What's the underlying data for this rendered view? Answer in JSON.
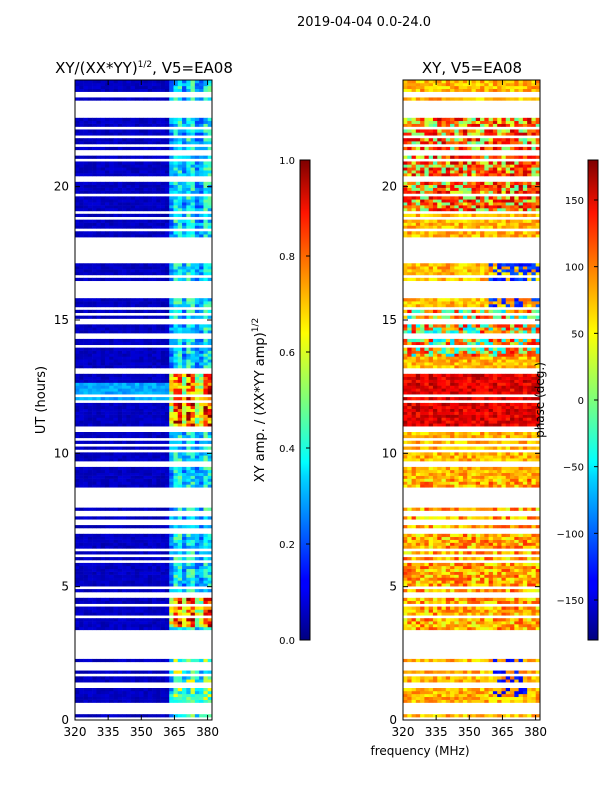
{
  "suptitle": "2019-04-04 0.0-24.0",
  "chart_data": [
    {
      "type": "heatmap",
      "title_prefix": "XY/(XX*YY)",
      "title_sup": "1/2",
      "title_suffix": ", V5=EA08",
      "ylabel": "UT (hours)",
      "xlabel": "",
      "xlim": [
        320,
        382
      ],
      "ylim": [
        0,
        24
      ],
      "xticks": [
        320,
        335,
        350,
        365,
        380
      ],
      "yticks": [
        0,
        5,
        10,
        15,
        20
      ],
      "colorbar": {
        "label_prefix": "XY amp. / (XX*YY amp)",
        "label_sup": "1/2",
        "range": [
          0.0,
          1.0
        ],
        "ticks": [
          "0.0",
          "0.2",
          "0.4",
          "0.6",
          "0.8",
          "1.0"
        ],
        "colormap": "jet"
      },
      "description": "low values (~0.05) below 360 MHz; higher values (0.3-1.0) in 362-382 MHz band, peaks near 11-13 h and 3.5-4.7 h"
    },
    {
      "type": "heatmap",
      "title": "XY, V5=EA08",
      "ylabel": "",
      "xlabel": "frequency (MHz)",
      "xlim": [
        320,
        382
      ],
      "ylim": [
        0,
        24
      ],
      "xticks": [
        320,
        335,
        350,
        365,
        380
      ],
      "yticks": [
        0,
        5,
        10,
        15,
        20
      ],
      "colorbar": {
        "label": "phase (deg.)",
        "range": [
          -180,
          180
        ],
        "ticks": [
          "−150",
          "−100",
          "−50",
          "0",
          "50",
          "100",
          "150"
        ],
        "colormap": "jet"
      },
      "description": "phase mostly +50..+150 deg (orange/yellow) with blue -150 deg features near 360-380 MHz at 1-2 h and 15-17 h"
    }
  ]
}
